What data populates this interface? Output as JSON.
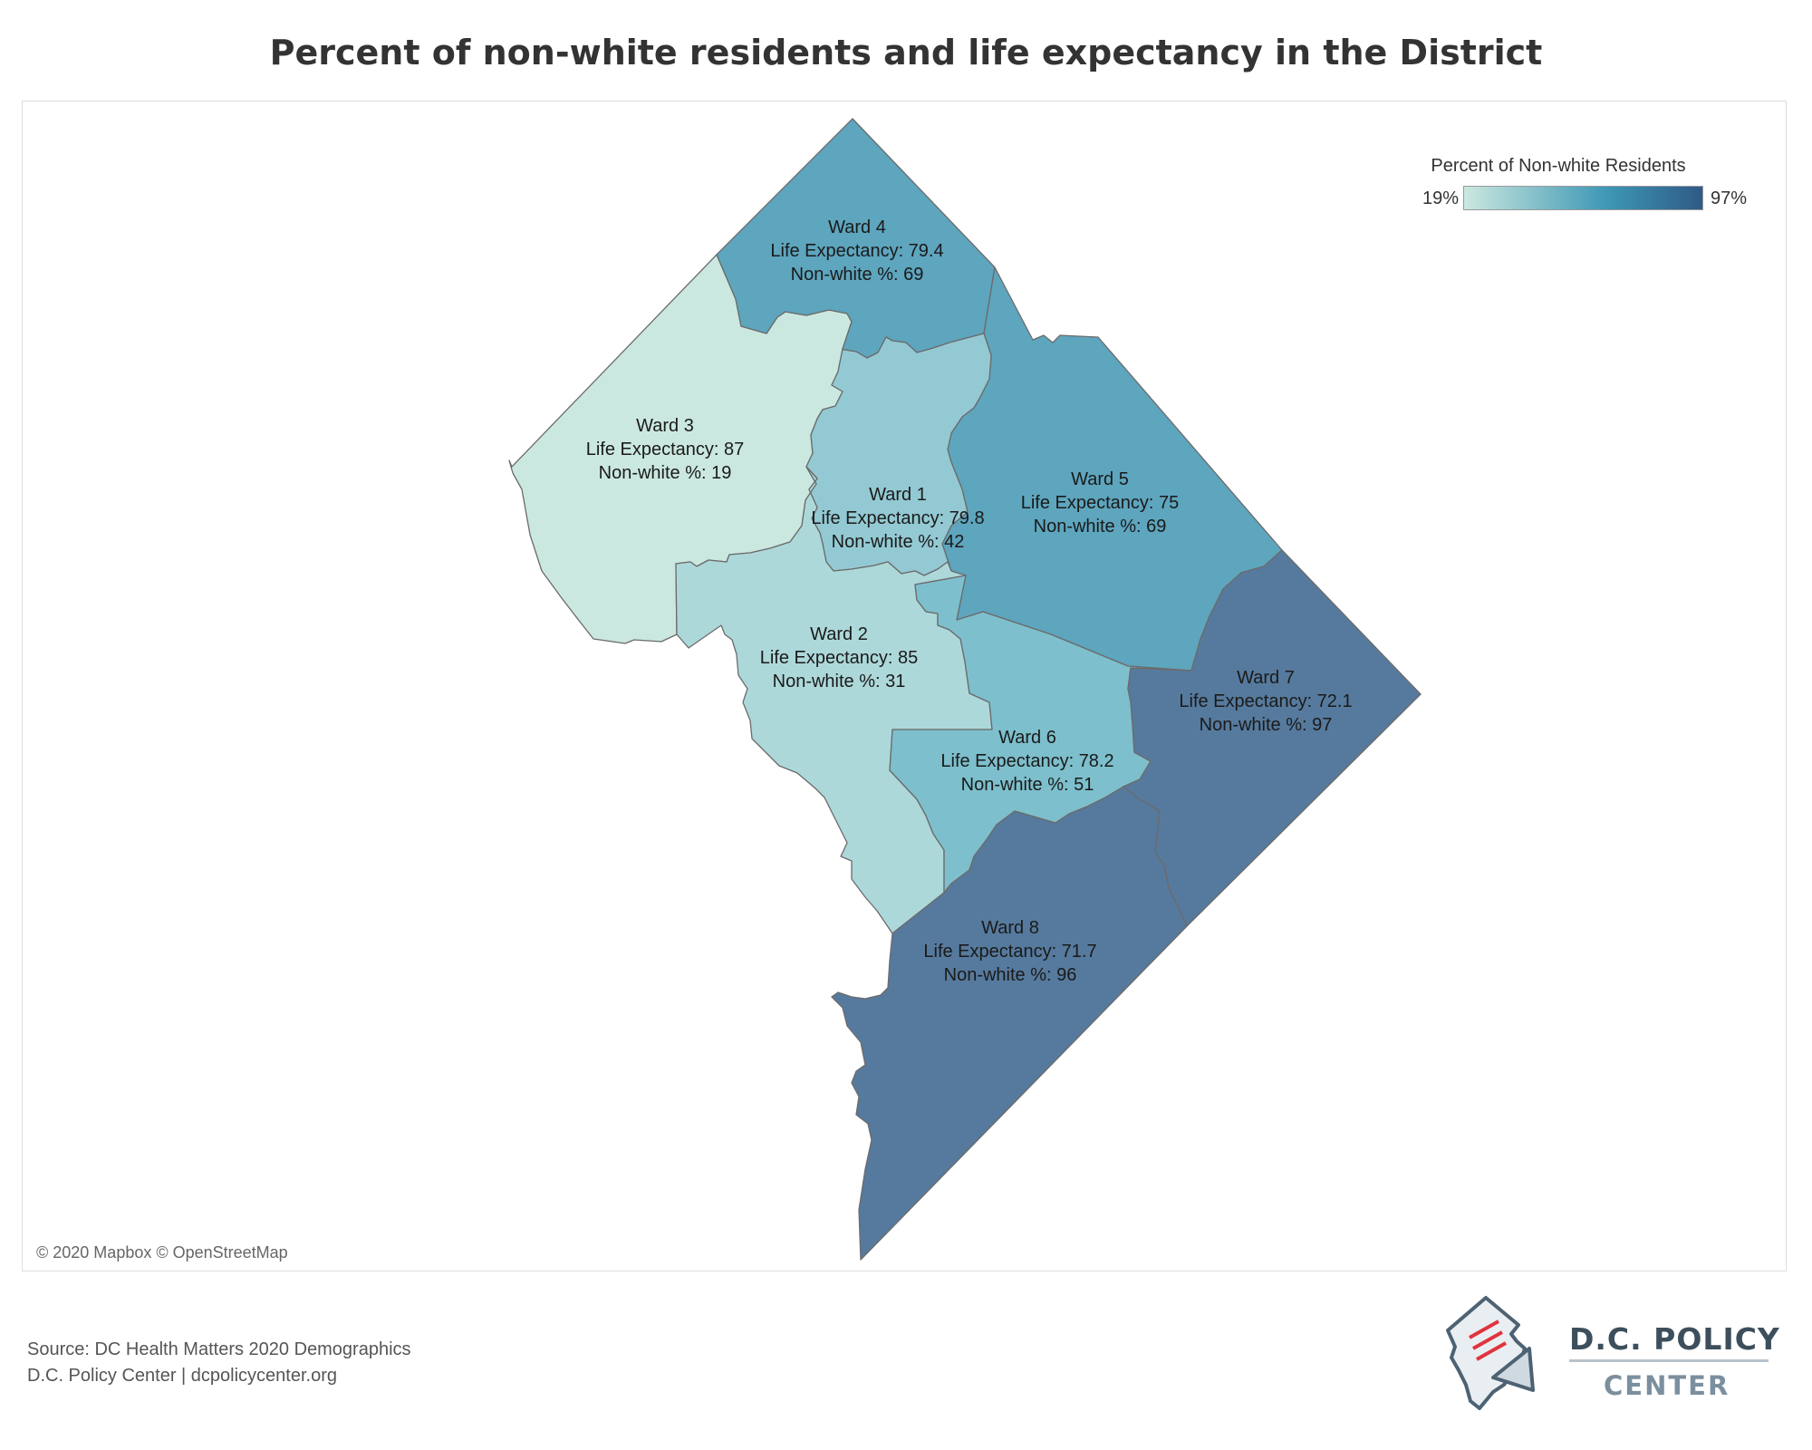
{
  "title": "Percent of non-white residents and life expectancy in the District",
  "legend": {
    "title": "Percent of Non-white Residents",
    "min_label": "19%",
    "max_label": "97%",
    "color_low": "#cbe8e0",
    "color_mid": "#3e97b5",
    "color_high": "#2f5a86"
  },
  "wards": [
    {
      "name": "Ward 1",
      "life_expectancy": "Life Expectancy: 79.8",
      "nonwhite": "Non-white %: 42",
      "nonwhite_pct": 42,
      "color": "#93c9d3"
    },
    {
      "name": "Ward 2",
      "life_expectancy": "Life Expectancy: 85",
      "nonwhite": "Non-white %: 31",
      "nonwhite_pct": 31,
      "color": "#add8da"
    },
    {
      "name": "Ward 3",
      "life_expectancy": "Life Expectancy: 87",
      "nonwhite": "Non-white %: 19",
      "nonwhite_pct": 19,
      "color": "#cbe8e0"
    },
    {
      "name": "Ward 4",
      "life_expectancy": "Life Expectancy: 79.4",
      "nonwhite": "Non-white %: 69",
      "nonwhite_pct": 69,
      "color": "#5ea5be"
    },
    {
      "name": "Ward 5",
      "life_expectancy": "Life Expectancy: 75",
      "nonwhite": "Non-white %: 69",
      "nonwhite_pct": 69,
      "color": "#5ea5be"
    },
    {
      "name": "Ward 6",
      "life_expectancy": "Life Expectancy: 78.2",
      "nonwhite": "Non-white %: 51",
      "nonwhite_pct": 51,
      "color": "#7dbfcc"
    },
    {
      "name": "Ward 7",
      "life_expectancy": "Life Expectancy: 72.1",
      "nonwhite": "Non-white %: 97",
      "nonwhite_pct": 97,
      "color": "#567a9d"
    },
    {
      "name": "Ward 8",
      "life_expectancy": "Life Expectancy: 71.7",
      "nonwhite": "Non-white %: 96",
      "nonwhite_pct": 96,
      "color": "#567a9d"
    }
  ],
  "attribution": "© 2020 Mapbox © OpenStreetMap",
  "source_line1": "Source: DC Health Matters 2020 Demographics",
  "source_line2": "D.C. Policy Center | dcpolicycenter.org",
  "logo": {
    "line1": "D.C. POLICY",
    "line2": "CENTER"
  }
}
